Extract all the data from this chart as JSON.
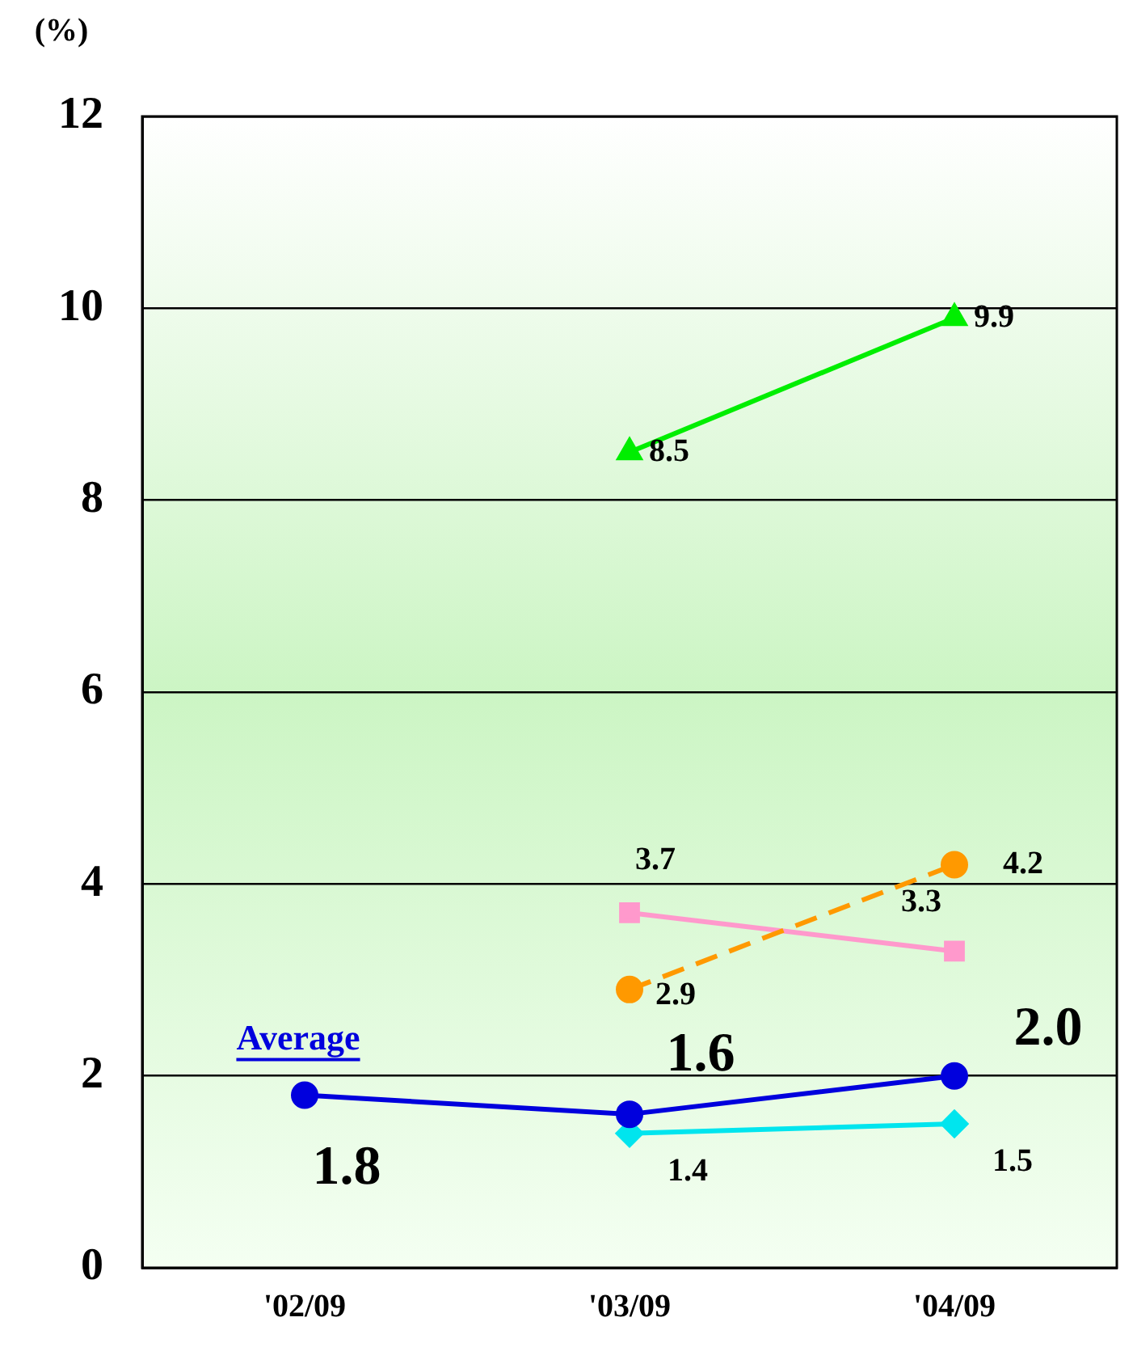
{
  "chart_data": {
    "type": "line",
    "ylabel": "(%)",
    "categories": [
      "'02/09",
      "'03/09",
      "'04/09"
    ],
    "ylim": [
      0,
      12
    ],
    "yticks": [
      0,
      2,
      4,
      6,
      8,
      10,
      12
    ],
    "grid": "y",
    "legend": false,
    "series": [
      {
        "color": "#00ee00",
        "marker": "triangle",
        "values": [
          null,
          8.5,
          9.9
        ],
        "value_labels": [
          null,
          "8.5",
          "9.9"
        ]
      },
      {
        "color": "#ff9900",
        "marker": "circle",
        "line_style": "dashed",
        "values": [
          null,
          2.9,
          4.2
        ],
        "value_labels": [
          null,
          "2.9",
          "4.2"
        ]
      },
      {
        "color": "#ff99cc",
        "marker": "square",
        "values": [
          null,
          3.7,
          3.3
        ],
        "value_labels": [
          null,
          "3.7",
          "3.3"
        ]
      },
      {
        "name": "Average",
        "color": "#0000dd",
        "marker": "circle",
        "values": [
          1.8,
          1.6,
          2.0
        ],
        "value_labels": [
          "1.8",
          "1.6",
          "2.0"
        ]
      },
      {
        "color": "#00e5ee",
        "marker": "diamond",
        "values": [
          null,
          1.4,
          1.5
        ],
        "value_labels": [
          null,
          "1.4",
          "1.5"
        ]
      }
    ]
  }
}
